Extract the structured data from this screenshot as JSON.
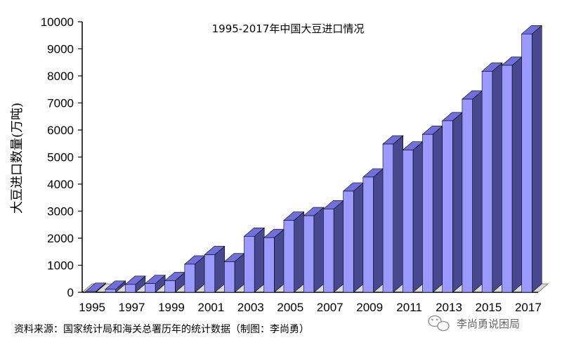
{
  "chart_data": {
    "type": "bar",
    "title": "1995-2017年中国大豆进口情况",
    "xlabel": "",
    "ylabel": "大豆进口数量(万吨)",
    "categories": [
      "1995",
      "1996",
      "1997",
      "1998",
      "1999",
      "2000",
      "2001",
      "2002",
      "2003",
      "2004",
      "2005",
      "2006",
      "2007",
      "2008",
      "2009",
      "2010",
      "2011",
      "2012",
      "2013",
      "2014",
      "2015",
      "2016",
      "2017"
    ],
    "x_tick_labels": [
      "1995",
      "1997",
      "1999",
      "2001",
      "2003",
      "2005",
      "2007",
      "2009",
      "2011",
      "2013",
      "2015",
      "2017"
    ],
    "values": [
      30,
      110,
      290,
      320,
      430,
      1040,
      1390,
      1130,
      2070,
      2020,
      2660,
      2830,
      3080,
      3740,
      4260,
      5480,
      5260,
      5840,
      6340,
      7140,
      8170,
      8390,
      9550
    ],
    "ylim": [
      0,
      10000
    ],
    "y_ticks": [
      "0",
      "1000",
      "2000",
      "3000",
      "4000",
      "5000",
      "6000",
      "7000",
      "8000",
      "9000",
      "10000"
    ],
    "grid": false,
    "bar_color_front": "#9999ff",
    "bar_color_top": "#7070dd",
    "bar_color_side": "#484890"
  },
  "source_note": "资料来源：国家统计局和海关总署历年的统计数据（制图：李尚勇）",
  "watermark": "李尚勇说困局"
}
